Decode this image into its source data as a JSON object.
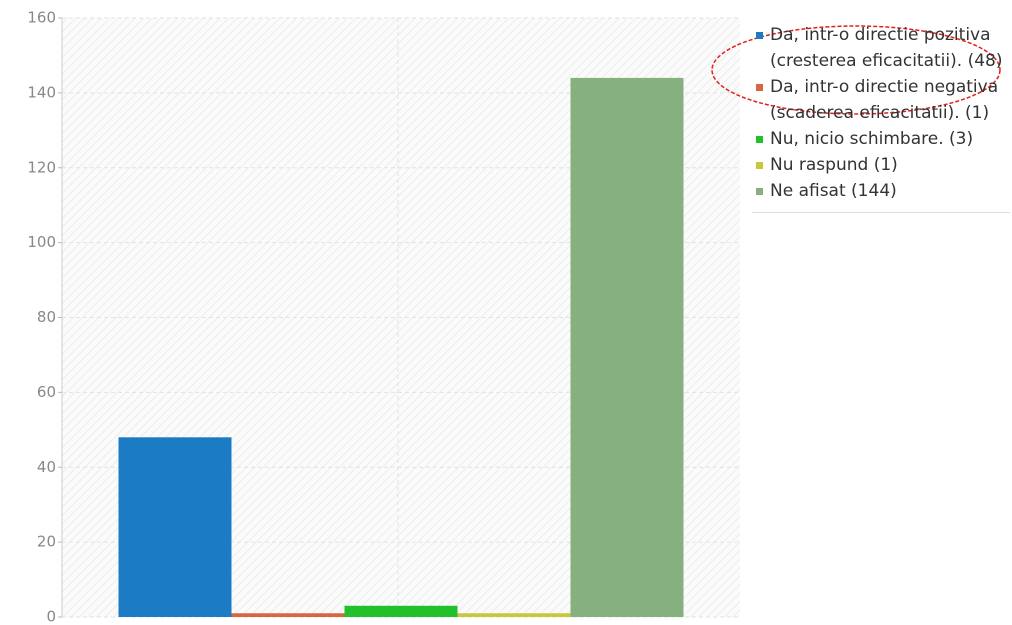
{
  "chart_data": {
    "type": "bar",
    "categories": [
      "Da, intr-o directie pozitiva (cresterea eficacitatii). (48)",
      "Da, intr-o directie negativa (scaderea eficacitatii). (1)",
      "Nu, nicio schimbare. (3)",
      "Nu raspund (1)",
      "Ne afisat (144)"
    ],
    "values": [
      48,
      1,
      3,
      1,
      144
    ],
    "colors": [
      "#1b7bc4",
      "#d8663f",
      "#22c02a",
      "#c9c83a",
      "#86b07d"
    ],
    "ylim": [
      0,
      160
    ],
    "yticks": [
      0,
      20,
      40,
      60,
      80,
      100,
      120,
      140,
      160
    ],
    "grid": true,
    "legend": "right"
  }
}
